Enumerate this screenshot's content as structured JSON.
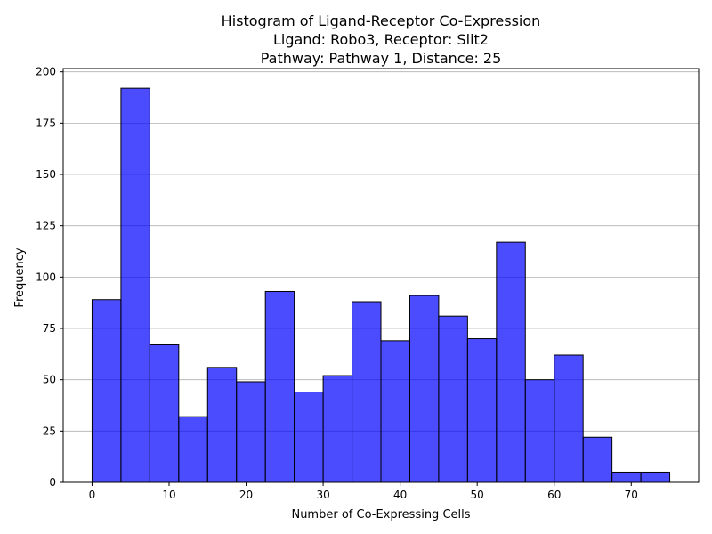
{
  "chart_data": {
    "type": "bar",
    "title_lines": [
      "Histogram of Ligand-Receptor Co-Expression",
      "Ligand: Robo3, Receptor: Slit2",
      "Pathway: Pathway 1, Distance: 25"
    ],
    "xlabel": "Number of Co-Expressing Cells",
    "ylabel": "Frequency",
    "xlim": [
      -3.75,
      78.75
    ],
    "ylim": [
      0,
      201.6
    ],
    "xticks": [
      0,
      10,
      20,
      30,
      40,
      50,
      60,
      70
    ],
    "yticks": [
      0,
      25,
      50,
      75,
      100,
      125,
      150,
      175,
      200
    ],
    "grid": "y",
    "bar_color": "#0000ff",
    "bar_opacity": 0.7,
    "edge_color": "#000000",
    "bins": [
      {
        "x0": 0.0,
        "x1": 3.75,
        "value": 89
      },
      {
        "x0": 3.75,
        "x1": 7.5,
        "value": 192
      },
      {
        "x0": 7.5,
        "x1": 11.25,
        "value": 67
      },
      {
        "x0": 11.25,
        "x1": 15.0,
        "value": 32
      },
      {
        "x0": 15.0,
        "x1": 18.75,
        "value": 56
      },
      {
        "x0": 18.75,
        "x1": 22.5,
        "value": 49
      },
      {
        "x0": 22.5,
        "x1": 26.25,
        "value": 93
      },
      {
        "x0": 26.25,
        "x1": 30.0,
        "value": 44
      },
      {
        "x0": 30.0,
        "x1": 33.75,
        "value": 52
      },
      {
        "x0": 33.75,
        "x1": 37.5,
        "value": 88
      },
      {
        "x0": 37.5,
        "x1": 41.25,
        "value": 69
      },
      {
        "x0": 41.25,
        "x1": 45.0,
        "value": 91
      },
      {
        "x0": 45.0,
        "x1": 48.75,
        "value": 81
      },
      {
        "x0": 48.75,
        "x1": 52.5,
        "value": 70
      },
      {
        "x0": 52.5,
        "x1": 56.25,
        "value": 117
      },
      {
        "x0": 56.25,
        "x1": 60.0,
        "value": 50
      },
      {
        "x0": 60.0,
        "x1": 63.75,
        "value": 62
      },
      {
        "x0": 63.75,
        "x1": 67.5,
        "value": 22
      },
      {
        "x0": 67.5,
        "x1": 71.25,
        "value": 5
      },
      {
        "x0": 71.25,
        "x1": 75.0,
        "value": 5
      }
    ]
  }
}
